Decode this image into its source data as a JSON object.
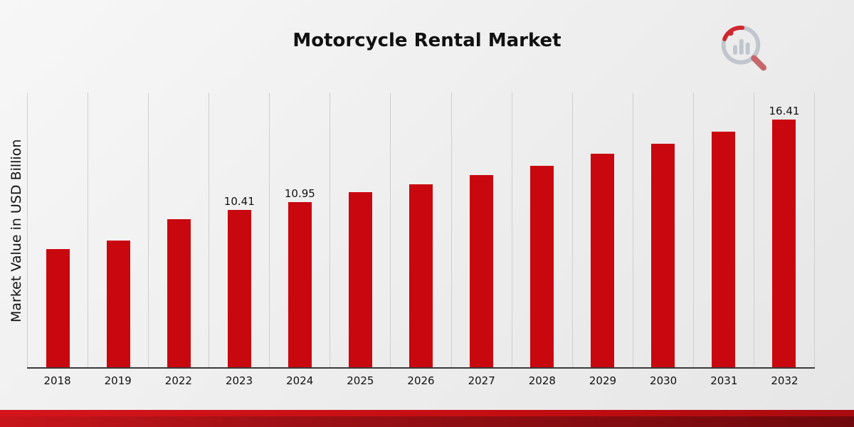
{
  "title": "Motorcycle Rental Market",
  "ylabel": "Market Value in USD Billion",
  "colors": {
    "bar": "#C9070F",
    "grid": "#CFCFCF",
    "axis": "#3A3A3A",
    "footer_top": "#C40D12",
    "footer_bottom_left": "#C8151B",
    "footer_bottom_right": "#70090D",
    "background": "#EFEFEF",
    "logo_gray": "#B9C0C8",
    "logo_red": "#C9070F"
  },
  "chart_data": {
    "type": "bar",
    "title": "Motorcycle Rental Market",
    "xlabel": "",
    "ylabel": "Market Value in USD Billion",
    "categories": [
      "2018",
      "2019",
      "2022",
      "2023",
      "2024",
      "2025",
      "2026",
      "2027",
      "2028",
      "2029",
      "2030",
      "2031",
      "2032"
    ],
    "values": [
      7.85,
      8.4,
      9.8,
      10.41,
      10.95,
      11.6,
      12.1,
      12.75,
      13.35,
      14.15,
      14.8,
      15.6,
      16.41
    ],
    "bar_labels": {
      "2023": "10.41",
      "2024": "10.95",
      "2032": "16.41"
    },
    "ylim": [
      0,
      18.2
    ],
    "grid": "vertical-only",
    "legend": "none"
  }
}
